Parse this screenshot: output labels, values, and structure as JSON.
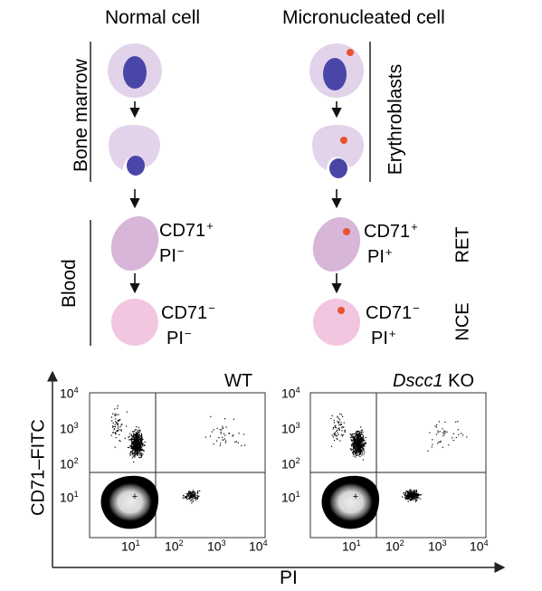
{
  "columns": {
    "normal": "Normal cell",
    "micronucleated": "Micronucleated cell"
  },
  "sides": {
    "bone_marrow": "Bone marrow",
    "blood": "Blood",
    "erythroblasts": "Erythroblasts"
  },
  "stages": {
    "ret": {
      "marker1": "CD71",
      "sign1": "+",
      "pi": "PI",
      "pi_normal": "−",
      "pi_micro": "+",
      "tag": "RET"
    },
    "nce": {
      "marker1": "CD71",
      "sign1": "−",
      "pi": "PI",
      "pi_normal": "−",
      "pi_micro": "+",
      "tag": "NCE"
    }
  },
  "plots": {
    "y_axis_label": "CD71–FITC",
    "x_axis_label": "PI",
    "panels": [
      {
        "label_plain": "WT",
        "label_italic": "",
        "label_rest": ""
      },
      {
        "label_plain": "",
        "label_italic": "Dscc1",
        "label_rest": " KO"
      }
    ],
    "ticks": [
      "10",
      "10",
      "10",
      "10"
    ],
    "tick_exps": [
      "1",
      "2",
      "3",
      "4"
    ]
  },
  "colors": {
    "cell_nucleated": "#e3d3ea",
    "nucleus": "#4a46a8",
    "reticulocyte": "#d8b6d8",
    "normocyte": "#f2c6e0",
    "micronucleus": "#e8532e"
  }
}
